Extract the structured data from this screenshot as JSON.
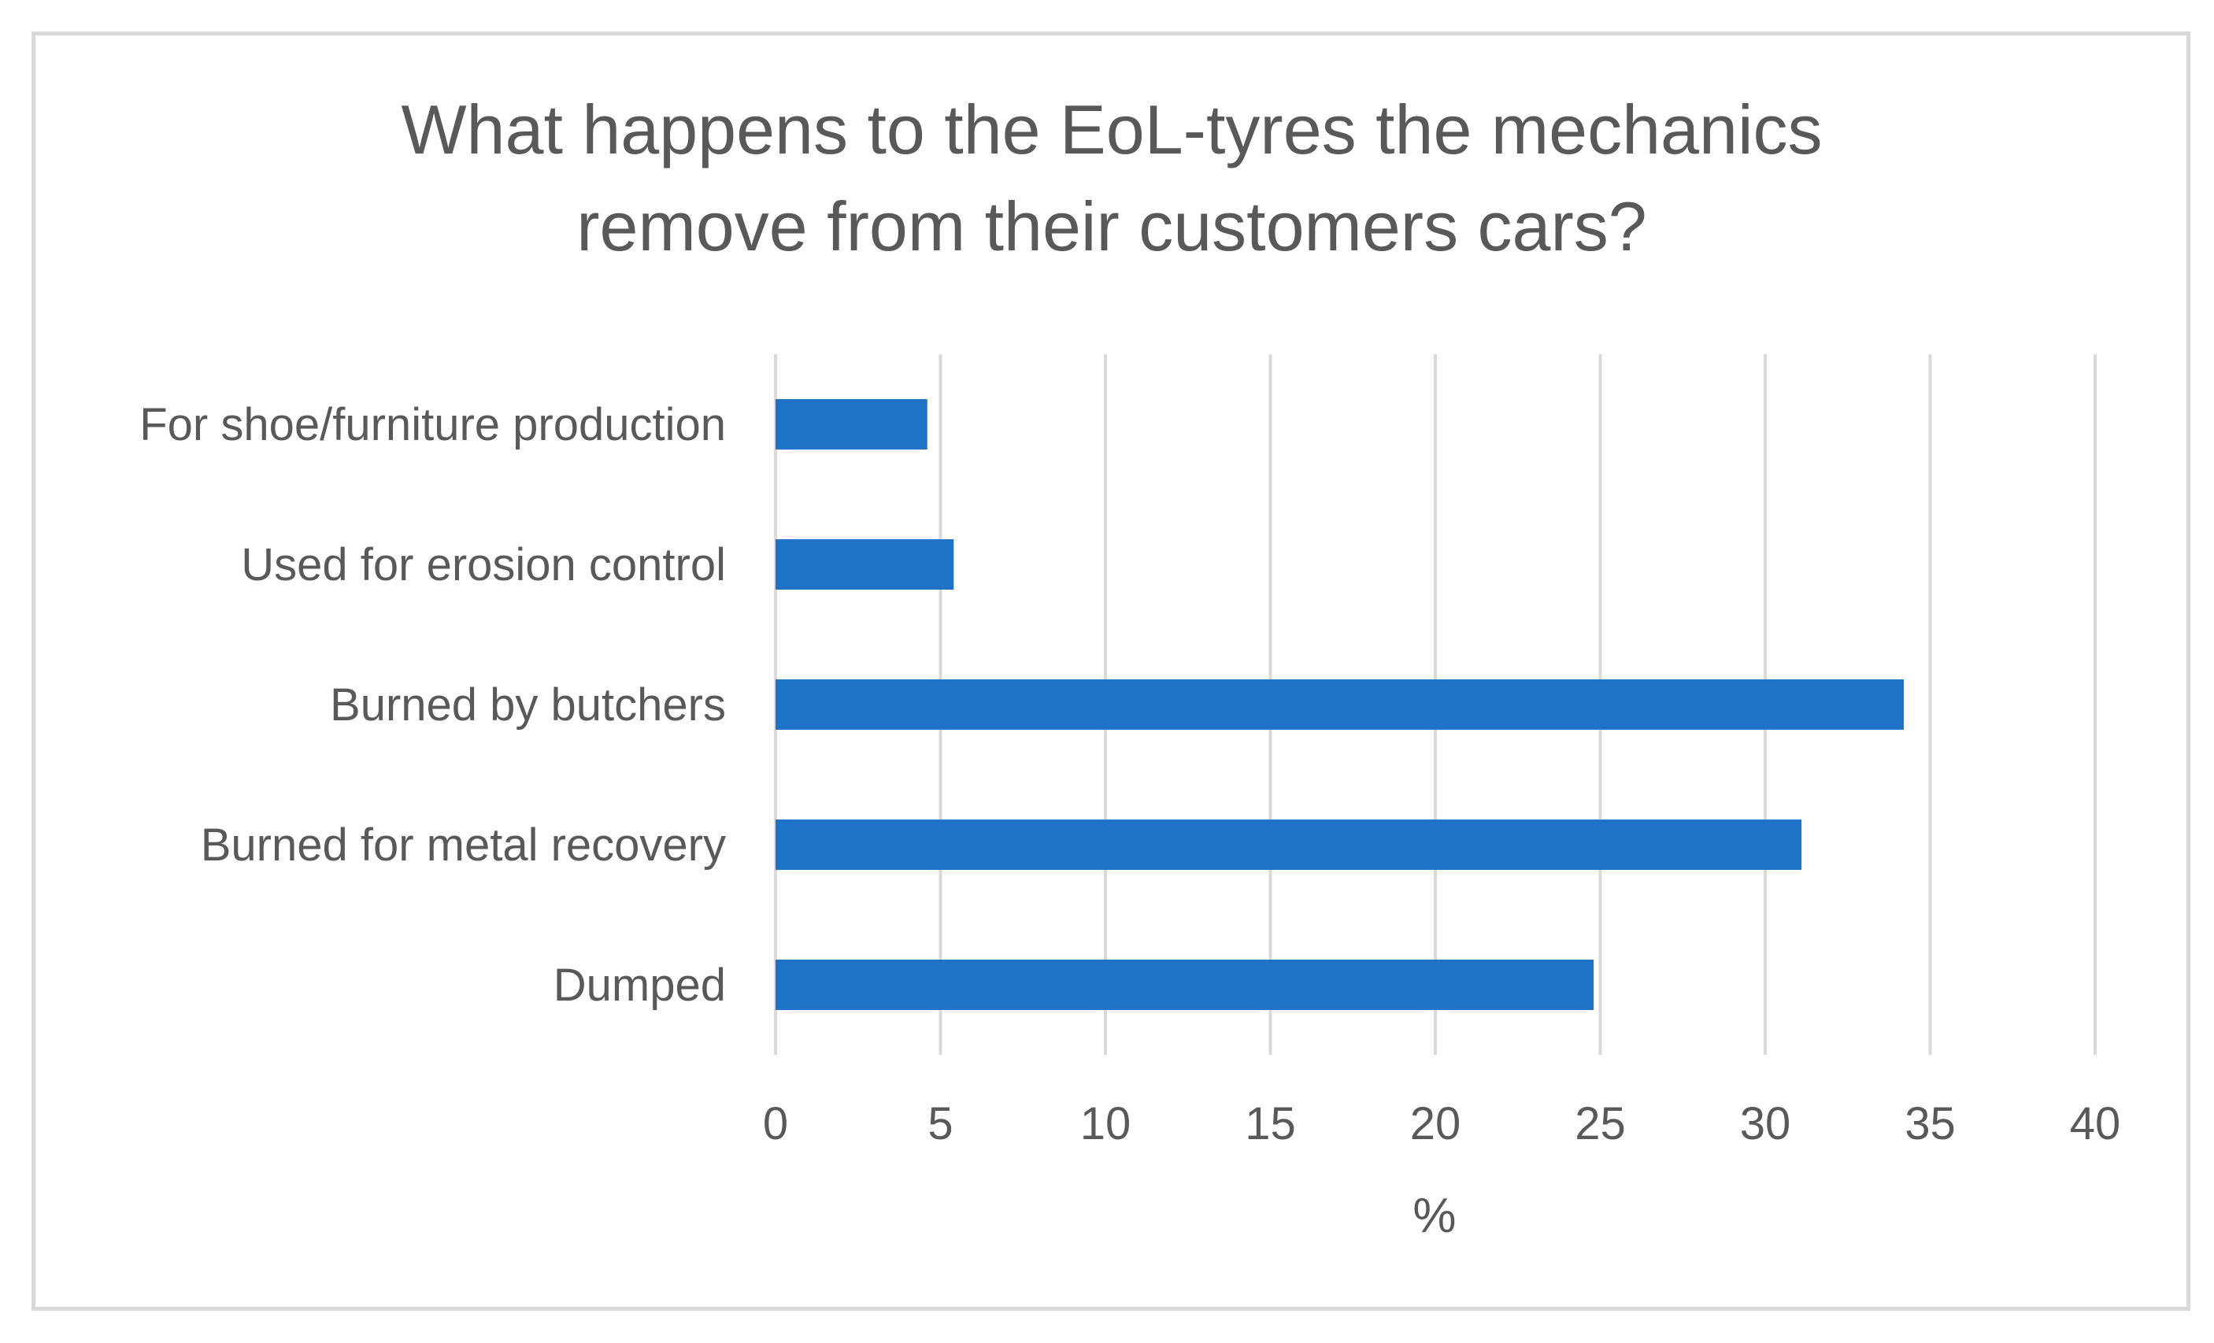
{
  "chart_data": {
    "type": "bar",
    "orientation": "horizontal",
    "title_lines": [
      "What happens to the EoL-tyres the mechanics",
      "remove from their customers cars?"
    ],
    "categories": [
      "For shoe/furniture production",
      "Used for erosion control",
      "Burned by butchers",
      "Burned for metal recovery",
      "Dumped"
    ],
    "values": [
      4.6,
      5.4,
      34.2,
      31.1,
      24.8
    ],
    "xlabel": "%",
    "ylabel": "",
    "xlim": [
      0,
      40
    ],
    "xticks": [
      "0",
      "5",
      "10",
      "15",
      "20",
      "25",
      "30",
      "35",
      "40"
    ],
    "grid": "vertical",
    "legend": "none",
    "bar_color": "#1f73c7"
  }
}
